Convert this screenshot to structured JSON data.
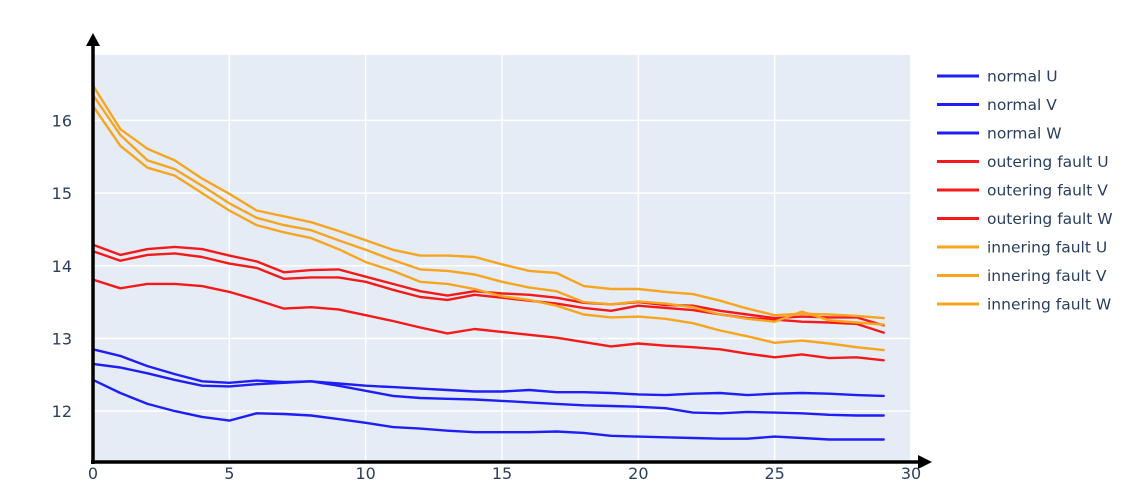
{
  "chart_data": {
    "type": "line",
    "title": "",
    "xlabel": "",
    "ylabel": "",
    "xlim": [
      0,
      30
    ],
    "ylim": [
      11.3,
      16.9
    ],
    "grid": true,
    "legend_position": "right",
    "xticks": [
      "0",
      "5",
      "10",
      "15",
      "20",
      "25",
      "30"
    ],
    "yticks": [
      "12",
      "13",
      "14",
      "15",
      "16"
    ],
    "x": [
      0,
      1,
      2,
      3,
      4,
      5,
      6,
      7,
      8,
      9,
      10,
      11,
      12,
      13,
      14,
      15,
      16,
      17,
      18,
      19,
      20,
      21,
      22,
      23,
      24,
      25,
      26,
      27,
      28,
      29
    ],
    "series": [
      {
        "name": "normal U",
        "color": "#1f1ff5",
        "values": [
          12.85,
          12.76,
          12.62,
          12.51,
          12.41,
          12.39,
          12.42,
          12.4,
          12.41,
          12.38,
          12.35,
          12.33,
          12.31,
          12.29,
          12.27,
          12.27,
          12.29,
          12.26,
          12.26,
          12.25,
          12.23,
          12.22,
          12.24,
          12.25,
          12.22,
          12.24,
          12.25,
          12.24,
          12.22,
          12.21
        ]
      },
      {
        "name": "normal V",
        "color": "#1f1ff5",
        "values": [
          12.65,
          12.6,
          12.52,
          12.43,
          12.35,
          12.34,
          12.37,
          12.39,
          12.41,
          12.35,
          12.28,
          12.21,
          12.18,
          12.17,
          12.16,
          12.14,
          12.12,
          12.1,
          12.08,
          12.07,
          12.06,
          12.04,
          11.98,
          11.97,
          11.99,
          11.98,
          11.97,
          11.95,
          11.94,
          11.94
        ]
      },
      {
        "name": "normal W",
        "color": "#1f1ff5",
        "values": [
          12.43,
          12.25,
          12.1,
          12.0,
          11.92,
          11.87,
          11.97,
          11.96,
          11.94,
          11.89,
          11.84,
          11.78,
          11.76,
          11.73,
          11.71,
          11.71,
          11.71,
          11.72,
          11.7,
          11.66,
          11.65,
          11.64,
          11.63,
          11.62,
          11.62,
          11.65,
          11.63,
          11.61,
          11.61,
          11.61
        ]
      },
      {
        "name": "outering fault U",
        "color": "#f51a1a",
        "values": [
          14.29,
          14.15,
          14.23,
          14.26,
          14.23,
          14.14,
          14.06,
          13.91,
          13.94,
          13.95,
          13.85,
          13.75,
          13.65,
          13.59,
          13.65,
          13.62,
          13.6,
          13.56,
          13.49,
          13.47,
          13.5,
          13.46,
          13.45,
          13.38,
          13.33,
          13.28,
          13.3,
          13.29,
          13.29,
          13.18
        ]
      },
      {
        "name": "outering fault V",
        "color": "#f51a1a",
        "values": [
          14.2,
          14.07,
          14.15,
          14.17,
          14.12,
          14.03,
          13.97,
          13.82,
          13.84,
          13.84,
          13.78,
          13.67,
          13.57,
          13.53,
          13.6,
          13.56,
          13.52,
          13.48,
          13.42,
          13.38,
          13.45,
          13.42,
          13.39,
          13.33,
          13.28,
          13.26,
          13.23,
          13.22,
          13.2,
          13.08
        ]
      },
      {
        "name": "outering fault W",
        "color": "#f51a1a",
        "values": [
          13.81,
          13.69,
          13.75,
          13.75,
          13.72,
          13.64,
          13.53,
          13.41,
          13.43,
          13.4,
          13.32,
          13.24,
          13.15,
          13.07,
          13.13,
          13.09,
          13.05,
          13.01,
          12.95,
          12.89,
          12.93,
          12.9,
          12.88,
          12.85,
          12.79,
          12.74,
          12.78,
          12.73,
          12.74,
          12.7
        ]
      },
      {
        "name": "innering fault U",
        "color": "#f7a51e",
        "values": [
          16.48,
          15.88,
          15.61,
          15.45,
          15.2,
          14.99,
          14.76,
          14.68,
          14.6,
          14.48,
          14.35,
          14.22,
          14.14,
          14.14,
          14.12,
          14.02,
          13.93,
          13.9,
          13.72,
          13.68,
          13.68,
          13.64,
          13.61,
          13.52,
          13.41,
          13.32,
          13.34,
          13.33,
          13.31,
          13.28
        ]
      },
      {
        "name": "innering fault V",
        "color": "#f7a51e",
        "values": [
          16.35,
          15.8,
          15.45,
          15.33,
          15.1,
          14.86,
          14.66,
          14.56,
          14.49,
          14.35,
          14.22,
          14.08,
          13.95,
          13.93,
          13.88,
          13.78,
          13.7,
          13.65,
          13.5,
          13.47,
          13.51,
          13.48,
          13.43,
          13.33,
          13.27,
          13.23,
          13.37,
          13.25,
          13.22,
          13.19
        ]
      },
      {
        "name": "innering fault W",
        "color": "#f7a51e",
        "values": [
          16.2,
          15.65,
          15.35,
          15.24,
          15.0,
          14.76,
          14.56,
          14.46,
          14.38,
          14.23,
          14.05,
          13.93,
          13.78,
          13.75,
          13.68,
          13.58,
          13.53,
          13.45,
          13.33,
          13.29,
          13.3,
          13.27,
          13.21,
          13.11,
          13.03,
          12.94,
          12.97,
          12.93,
          12.88,
          12.84
        ]
      }
    ]
  }
}
